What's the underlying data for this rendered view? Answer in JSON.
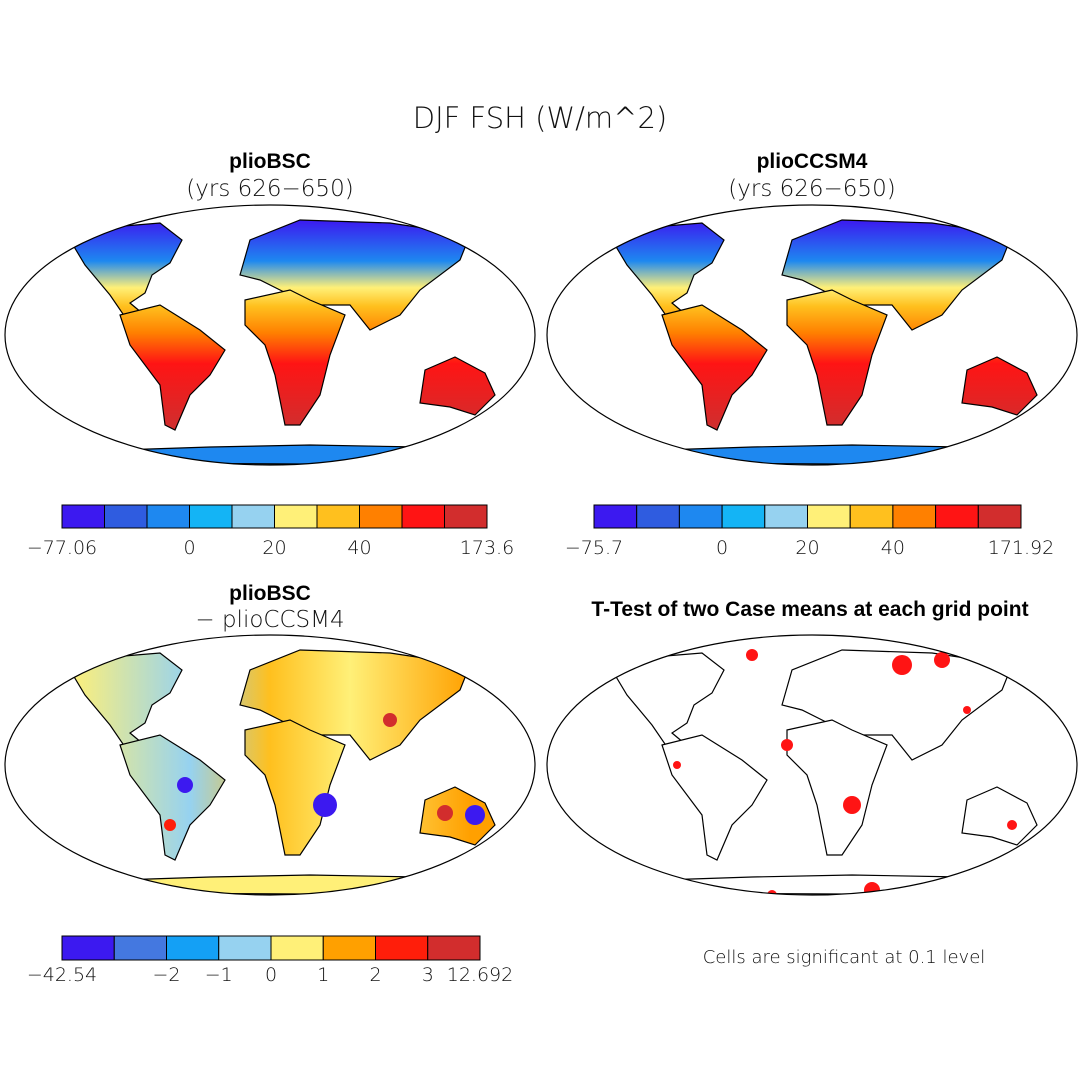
{
  "title": "DJF FSH (W/m^2)",
  "panels": [
    {
      "title": "plioBSC",
      "subtitle": "(yrs 626−650)",
      "colorbar": {
        "colors": [
          "#3c19f0",
          "#2f5ce0",
          "#1e88f0",
          "#14b4f5",
          "#96d2f0",
          "#fff078",
          "#ffc01e",
          "#ff8000",
          "#ff1414",
          "#d22d2d"
        ],
        "levels": [
          {
            "value": -77.06,
            "label": "−77.06"
          },
          null,
          null,
          0,
          null,
          20,
          null,
          40,
          null,
          null,
          173.6
        ]
      }
    },
    {
      "title": "plioCCSM4",
      "subtitle": "(yrs 626−650)",
      "colorbar": {
        "colors": [
          "#3c19f0",
          "#2f5ce0",
          "#1e88f0",
          "#14b4f5",
          "#96d2f0",
          "#fff078",
          "#ffc01e",
          "#ff8000",
          "#ff1414",
          "#d22d2d"
        ],
        "levels": [
          {
            "value": -75.7,
            "label": "−75.7"
          },
          null,
          null,
          0,
          null,
          20,
          null,
          40,
          null,
          null,
          171.92
        ]
      }
    },
    {
      "title": "plioBSC",
      "subtitle": "− plioCCSM4",
      "colorbar": {
        "colors": [
          "#3c19f0",
          "#4478e0",
          "#14a0f5",
          "#96d2f0",
          "#fff078",
          "#ffa000",
          "#ff1e0a",
          "#d22d2d"
        ],
        "levels": [
          {
            "value": -42.54,
            "label": "−42.54"
          },
          null,
          {
            "value": -2,
            "label": "−2"
          },
          {
            "value": -1,
            "label": "−1"
          },
          0,
          1,
          2,
          3,
          12.692
        ]
      }
    },
    {
      "title": "T-Test of two Case means at each grid point",
      "note": "Cells are significant at 0.1 level"
    }
  ]
}
